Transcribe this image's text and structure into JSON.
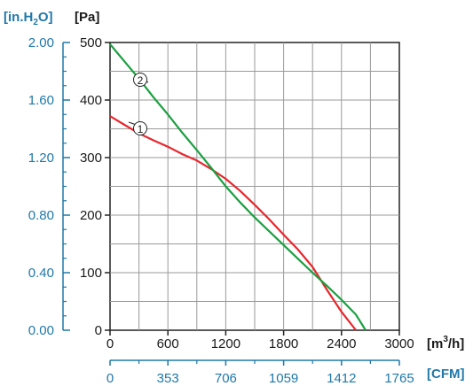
{
  "chart_data": {
    "type": "line",
    "x_axis": {
      "label_prefix": "[m",
      "label_sup": "3",
      "label_suffix": "/h]",
      "lim": [
        0,
        3000
      ],
      "ticks": [
        "0",
        "600",
        "1200",
        "1800",
        "2400",
        "3000"
      ]
    },
    "x2_axis": {
      "label": "[CFM]",
      "ticks": [
        "0",
        "353",
        "706",
        "1059",
        "1412",
        "1765"
      ],
      "color": "#1f78a8"
    },
    "y_axis": {
      "label": "[Pa]",
      "lim": [
        0,
        500
      ],
      "ticks": [
        "0",
        "100",
        "200",
        "300",
        "400",
        "500"
      ]
    },
    "y2_axis": {
      "label_prefix": "[in.H",
      "label_sub": "2",
      "label_suffix": "O]",
      "ticks": [
        "0.00",
        "0.40",
        "0.80",
        "1.20",
        "1.60",
        "2.00"
      ],
      "color": "#1f78a8"
    },
    "grid": true,
    "series": [
      {
        "marker": "1",
        "color": "#e8262d",
        "x": [
          0,
          150,
          300,
          450,
          600,
          750,
          900,
          1050,
          1200,
          1350,
          1500,
          1650,
          1800,
          1950,
          2100,
          2250,
          2400,
          2550
        ],
        "y": [
          372,
          357,
          342,
          330,
          319,
          306,
          295,
          280,
          263,
          242,
          218,
          193,
          166,
          140,
          110,
          70,
          32,
          0
        ]
      },
      {
        "marker": "2",
        "color": "#1aa040",
        "x": [
          0,
          150,
          300,
          450,
          600,
          750,
          900,
          1050,
          1200,
          1350,
          1500,
          1650,
          1800,
          1950,
          2100,
          2250,
          2400,
          2550,
          2650
        ],
        "y": [
          497,
          467,
          437,
          405,
          375,
          343,
          313,
          282,
          250,
          222,
          196,
          172,
          148,
          124,
          100,
          77,
          53,
          27,
          0
        ]
      }
    ]
  }
}
